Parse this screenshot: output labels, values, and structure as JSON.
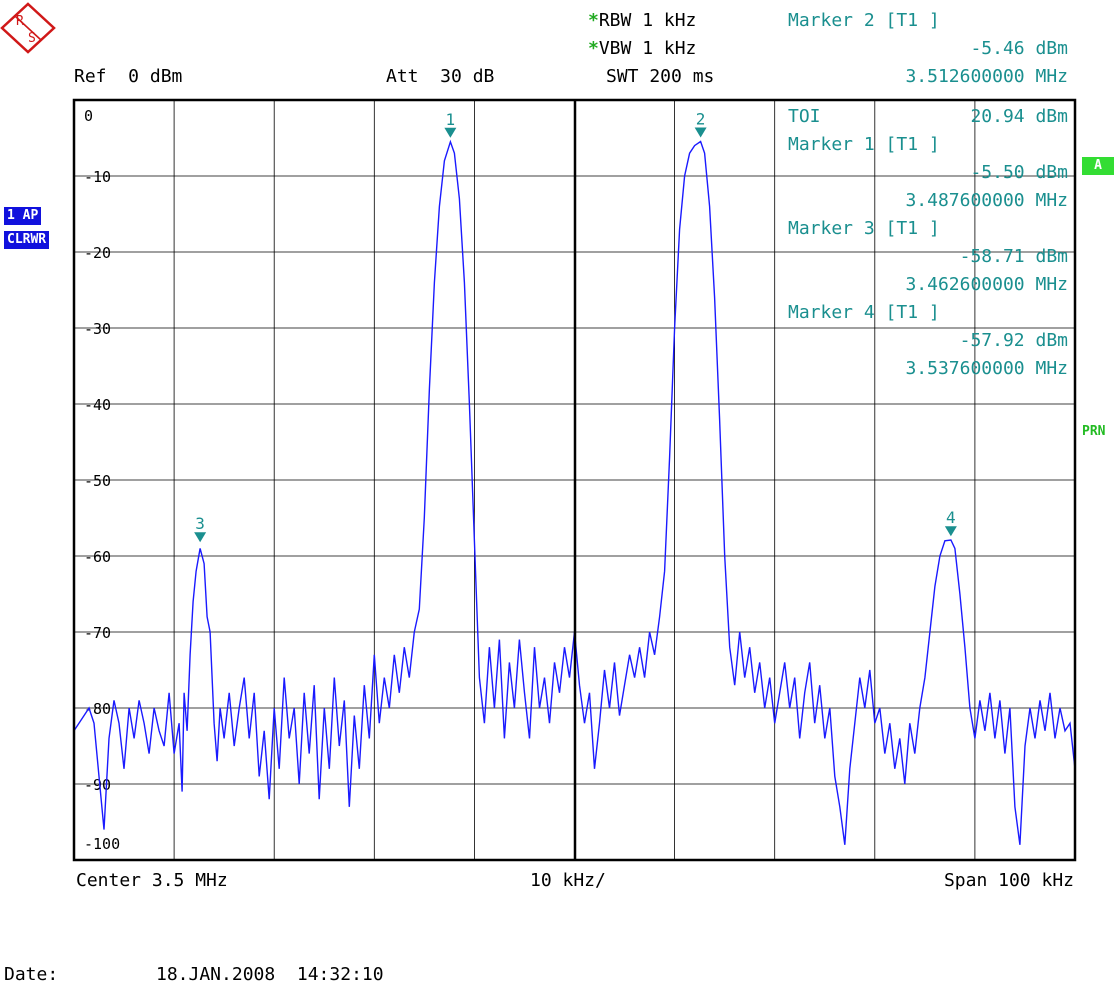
{
  "header": {
    "rbw": "RBW 1 kHz",
    "vbw": "VBW 1 kHz",
    "swt": "SWT 200 ms",
    "ref": "Ref  0 dBm",
    "att": "Att  30 dB",
    "asterisk": "*"
  },
  "marker_readout": {
    "title": "Marker 2 [T1 ]",
    "level": "-5.46 dBm",
    "freq": "3.512600000 MHz"
  },
  "marker_table": {
    "toi_label": "TOI",
    "toi_value": "20.94 dBm",
    "entries": [
      {
        "title": "Marker 1 [T1 ]",
        "level": "-5.50 dBm",
        "freq": "3.487600000 MHz"
      },
      {
        "title": "Marker 3 [T1 ]",
        "level": "-58.71 dBm",
        "freq": "3.462600000 MHz"
      },
      {
        "title": "Marker 4 [T1 ]",
        "level": "-57.92 dBm",
        "freq": "3.537600000 MHz"
      }
    ]
  },
  "left_badges": {
    "trace": "1 AP",
    "mode": "CLRWR"
  },
  "right_badges": {
    "a": "A",
    "prn": "PRN"
  },
  "footer": {
    "center": "Center 3.5 MHz",
    "div": "10 kHz/",
    "span": "Span 100 kHz",
    "date_label": "Date:",
    "date_value": "18.JAN.2008  14:32:10"
  },
  "colors": {
    "trace": "#1a1aff",
    "marker": "#1a8f8f",
    "grid": "#000000"
  },
  "chart_data": {
    "type": "line",
    "xlabel": "",
    "ylabel": "",
    "x_unit": "MHz",
    "y_unit": "dBm",
    "xlim": [
      3.45,
      3.55
    ],
    "ylim": [
      -100,
      0
    ],
    "y_ticks": [
      "0",
      "-10",
      "-20",
      "-30",
      "-40",
      "-50",
      "-60",
      "-70",
      "-80",
      "-90",
      "-100"
    ],
    "grid": true,
    "markers": [
      {
        "label": "1",
        "x": 3.4876,
        "y": -5.5
      },
      {
        "label": "2",
        "x": 3.5126,
        "y": -5.46
      },
      {
        "label": "3",
        "x": 3.4626,
        "y": -58.71
      },
      {
        "label": "4",
        "x": 3.5376,
        "y": -57.92
      }
    ],
    "series": [
      {
        "values": [
          [
            3.45,
            -83
          ],
          [
            3.451,
            -81
          ],
          [
            3.4515,
            -80
          ],
          [
            3.452,
            -82
          ],
          [
            3.4525,
            -89
          ],
          [
            3.453,
            -96
          ],
          [
            3.4535,
            -84
          ],
          [
            3.454,
            -79
          ],
          [
            3.4545,
            -82
          ],
          [
            3.455,
            -88
          ],
          [
            3.4555,
            -80
          ],
          [
            3.456,
            -84
          ],
          [
            3.4565,
            -79
          ],
          [
            3.457,
            -82
          ],
          [
            3.4575,
            -86
          ],
          [
            3.458,
            -80
          ],
          [
            3.4585,
            -83
          ],
          [
            3.459,
            -85
          ],
          [
            3.4595,
            -78
          ],
          [
            3.46,
            -86
          ],
          [
            3.4605,
            -82
          ],
          [
            3.4608,
            -91
          ],
          [
            3.461,
            -78
          ],
          [
            3.4613,
            -83
          ],
          [
            3.4616,
            -73
          ],
          [
            3.4619,
            -66
          ],
          [
            3.4622,
            -62
          ],
          [
            3.4626,
            -59
          ],
          [
            3.463,
            -61
          ],
          [
            3.4633,
            -68
          ],
          [
            3.4636,
            -70
          ],
          [
            3.464,
            -82
          ],
          [
            3.4643,
            -87
          ],
          [
            3.4646,
            -80
          ],
          [
            3.465,
            -84
          ],
          [
            3.4655,
            -78
          ],
          [
            3.466,
            -85
          ],
          [
            3.4665,
            -80
          ],
          [
            3.467,
            -76
          ],
          [
            3.4675,
            -84
          ],
          [
            3.468,
            -78
          ],
          [
            3.4685,
            -89
          ],
          [
            3.469,
            -83
          ],
          [
            3.4695,
            -92
          ],
          [
            3.47,
            -80
          ],
          [
            3.4705,
            -88
          ],
          [
            3.471,
            -76
          ],
          [
            3.4715,
            -84
          ],
          [
            3.472,
            -80
          ],
          [
            3.4725,
            -90
          ],
          [
            3.473,
            -78
          ],
          [
            3.4735,
            -86
          ],
          [
            3.474,
            -77
          ],
          [
            3.4745,
            -92
          ],
          [
            3.475,
            -80
          ],
          [
            3.4755,
            -88
          ],
          [
            3.476,
            -76
          ],
          [
            3.4765,
            -85
          ],
          [
            3.477,
            -79
          ],
          [
            3.4775,
            -93
          ],
          [
            3.478,
            -81
          ],
          [
            3.4785,
            -88
          ],
          [
            3.479,
            -77
          ],
          [
            3.4795,
            -84
          ],
          [
            3.48,
            -73
          ],
          [
            3.4805,
            -82
          ],
          [
            3.481,
            -76
          ],
          [
            3.4815,
            -80
          ],
          [
            3.482,
            -73
          ],
          [
            3.4825,
            -78
          ],
          [
            3.483,
            -72
          ],
          [
            3.4835,
            -76
          ],
          [
            3.484,
            -70
          ],
          [
            3.4845,
            -67
          ],
          [
            3.485,
            -55
          ],
          [
            3.4855,
            -38
          ],
          [
            3.486,
            -24
          ],
          [
            3.4865,
            -14
          ],
          [
            3.487,
            -8
          ],
          [
            3.4876,
            -5.5
          ],
          [
            3.488,
            -7
          ],
          [
            3.4885,
            -13
          ],
          [
            3.489,
            -24
          ],
          [
            3.4895,
            -40
          ],
          [
            3.49,
            -58
          ],
          [
            3.4905,
            -76
          ],
          [
            3.491,
            -82
          ],
          [
            3.4915,
            -72
          ],
          [
            3.492,
            -80
          ],
          [
            3.4925,
            -71
          ],
          [
            3.493,
            -84
          ],
          [
            3.4935,
            -74
          ],
          [
            3.494,
            -80
          ],
          [
            3.4945,
            -71
          ],
          [
            3.495,
            -78
          ],
          [
            3.4955,
            -84
          ],
          [
            3.496,
            -72
          ],
          [
            3.4965,
            -80
          ],
          [
            3.497,
            -76
          ],
          [
            3.4975,
            -82
          ],
          [
            3.498,
            -74
          ],
          [
            3.4985,
            -78
          ],
          [
            3.499,
            -72
          ],
          [
            3.4995,
            -76
          ],
          [
            3.5,
            -70
          ],
          [
            3.5005,
            -77
          ],
          [
            3.501,
            -82
          ],
          [
            3.5015,
            -78
          ],
          [
            3.502,
            -88
          ],
          [
            3.5025,
            -82
          ],
          [
            3.503,
            -75
          ],
          [
            3.5035,
            -80
          ],
          [
            3.504,
            -74
          ],
          [
            3.5045,
            -81
          ],
          [
            3.505,
            -77
          ],
          [
            3.5055,
            -73
          ],
          [
            3.506,
            -76
          ],
          [
            3.5065,
            -72
          ],
          [
            3.507,
            -76
          ],
          [
            3.5075,
            -70
          ],
          [
            3.508,
            -73
          ],
          [
            3.5085,
            -68
          ],
          [
            3.509,
            -62
          ],
          [
            3.5095,
            -47
          ],
          [
            3.51,
            -30
          ],
          [
            3.5105,
            -17
          ],
          [
            3.511,
            -10
          ],
          [
            3.5115,
            -7
          ],
          [
            3.512,
            -6
          ],
          [
            3.5126,
            -5.46
          ],
          [
            3.513,
            -7
          ],
          [
            3.5135,
            -14
          ],
          [
            3.514,
            -26
          ],
          [
            3.5145,
            -42
          ],
          [
            3.515,
            -60
          ],
          [
            3.5155,
            -72
          ],
          [
            3.516,
            -77
          ],
          [
            3.5165,
            -70
          ],
          [
            3.517,
            -76
          ],
          [
            3.5175,
            -72
          ],
          [
            3.518,
            -78
          ],
          [
            3.5185,
            -74
          ],
          [
            3.519,
            -80
          ],
          [
            3.5195,
            -76
          ],
          [
            3.52,
            -82
          ],
          [
            3.5205,
            -78
          ],
          [
            3.521,
            -74
          ],
          [
            3.5215,
            -80
          ],
          [
            3.522,
            -76
          ],
          [
            3.5225,
            -84
          ],
          [
            3.523,
            -78
          ],
          [
            3.5235,
            -74
          ],
          [
            3.524,
            -82
          ],
          [
            3.5245,
            -77
          ],
          [
            3.525,
            -84
          ],
          [
            3.5255,
            -80
          ],
          [
            3.526,
            -89
          ],
          [
            3.5265,
            -93
          ],
          [
            3.527,
            -98
          ],
          [
            3.5275,
            -88
          ],
          [
            3.528,
            -82
          ],
          [
            3.5285,
            -76
          ],
          [
            3.529,
            -80
          ],
          [
            3.5295,
            -75
          ],
          [
            3.53,
            -82
          ],
          [
            3.5305,
            -80
          ],
          [
            3.531,
            -86
          ],
          [
            3.5315,
            -82
          ],
          [
            3.532,
            -88
          ],
          [
            3.5325,
            -84
          ],
          [
            3.533,
            -90
          ],
          [
            3.5335,
            -82
          ],
          [
            3.534,
            -86
          ],
          [
            3.5345,
            -80
          ],
          [
            3.535,
            -76
          ],
          [
            3.5355,
            -70
          ],
          [
            3.536,
            -64
          ],
          [
            3.5365,
            -60
          ],
          [
            3.537,
            -58
          ],
          [
            3.5376,
            -57.9
          ],
          [
            3.538,
            -59
          ],
          [
            3.5385,
            -65
          ],
          [
            3.539,
            -72
          ],
          [
            3.5395,
            -80
          ],
          [
            3.54,
            -84
          ],
          [
            3.5405,
            -79
          ],
          [
            3.541,
            -83
          ],
          [
            3.5415,
            -78
          ],
          [
            3.542,
            -84
          ],
          [
            3.5425,
            -79
          ],
          [
            3.543,
            -86
          ],
          [
            3.5435,
            -80
          ],
          [
            3.544,
            -93
          ],
          [
            3.5445,
            -98
          ],
          [
            3.545,
            -85
          ],
          [
            3.5455,
            -80
          ],
          [
            3.546,
            -84
          ],
          [
            3.5465,
            -79
          ],
          [
            3.547,
            -83
          ],
          [
            3.5475,
            -78
          ],
          [
            3.548,
            -84
          ],
          [
            3.5485,
            -80
          ],
          [
            3.549,
            -83
          ],
          [
            3.5495,
            -82
          ],
          [
            3.55,
            -88
          ]
        ]
      }
    ]
  }
}
